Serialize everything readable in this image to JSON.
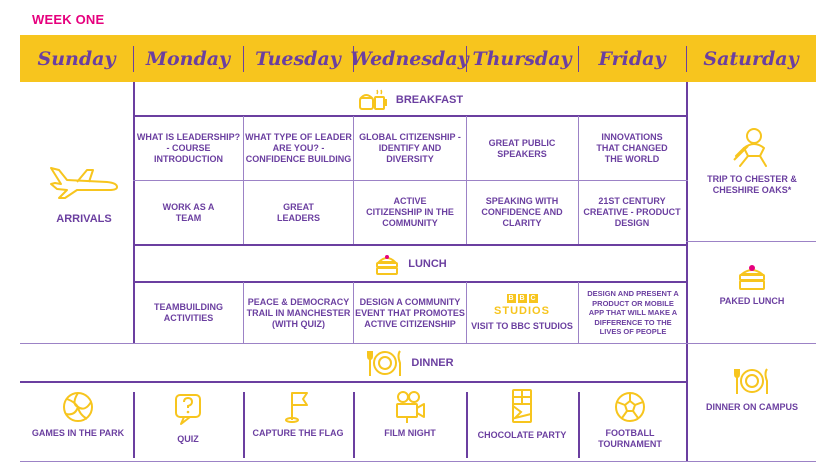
{
  "week_label": "WEEK ONE",
  "days": [
    "Sunday",
    "Monday",
    "Tuesday",
    "Wednesday",
    "Thursday",
    "Friday",
    "Saturday"
  ],
  "bands": {
    "breakfast": "BREAKFAST",
    "lunch": "LUNCH",
    "dinner": "DINNER"
  },
  "sunday": {
    "arrivals": "ARRIVALS",
    "games": "GAMES IN THE PARK"
  },
  "saturday": {
    "trip": "TRIP TO CHESTER & CHESHIRE OAKS*",
    "packed": "PAKED LUNCH",
    "dinner": "DINNER ON CAMPUS"
  },
  "morning1": {
    "monday": "WHAT IS LEADERSHIP? - COURSE INTRODUCTION",
    "tuesday": "WHAT TYPE OF LEADER ARE YOU? - CONFIDENCE BUILDING",
    "wednesday": "GLOBAL CITIZENSHIP - IDENTIFY AND DIVERSITY",
    "thursday": "GREAT PUBLIC SPEAKERS",
    "friday": "INNOVATIONS THAT CHANGED THE WORLD"
  },
  "morning2": {
    "monday": "WORK AS A TEAM",
    "tuesday": "GREAT LEADERS",
    "wednesday": "ACTIVE CITIZENSHIP IN THE COMMUNITY",
    "thursday": "SPEAKING WITH CONFIDENCE AND CLARITY",
    "friday": "21ST CENTURY CREATIVE - PRODUCT DESIGN"
  },
  "afternoon": {
    "monday": "TEAMBUILDING ACTIVITIES",
    "tuesday": "PEACE & DEMOCRACY TRAIL IN MANCHESTER (WITH QUIZ)",
    "wednesday": "DESIGN A COMMUNITY EVENT THAT PROMOTES ACTIVE CITIZENSHIP",
    "thursday_logo_bbc": [
      "B",
      "B",
      "C"
    ],
    "thursday_logo_studios": "STUDIOS",
    "thursday": "VISIT TO BBC STUDIOS",
    "friday": "DESIGN AND PRESENT A PRODUCT OR MOBILE APP THAT WILL MAKE A DIFFERENCE TO THE LIVES OF PEOPLE"
  },
  "evening": {
    "monday": "QUIZ",
    "tuesday": "CAPTURE THE FLAG",
    "wednesday": "FILM NIGHT",
    "thursday": "CHOCOLATE PARTY",
    "friday": "FOOTBALL TOURNAMENT"
  },
  "icons": {
    "plane": "airplane-icon",
    "breakfast": "breakfast-icon",
    "lunch": "lunch-icon",
    "dinner": "plate-cutlery-icon",
    "volleyball": "volleyball-icon",
    "quiz": "question-bubble-icon",
    "flag": "flag-icon",
    "camera": "video-camera-icon",
    "chocolate": "chocolate-icon",
    "football": "football-icon",
    "trip": "person-icon",
    "packed": "packed-lunch-icon"
  },
  "colors": {
    "purple": "#6b3fa0",
    "yellow": "#f7c51e",
    "magenta": "#e6007e"
  }
}
